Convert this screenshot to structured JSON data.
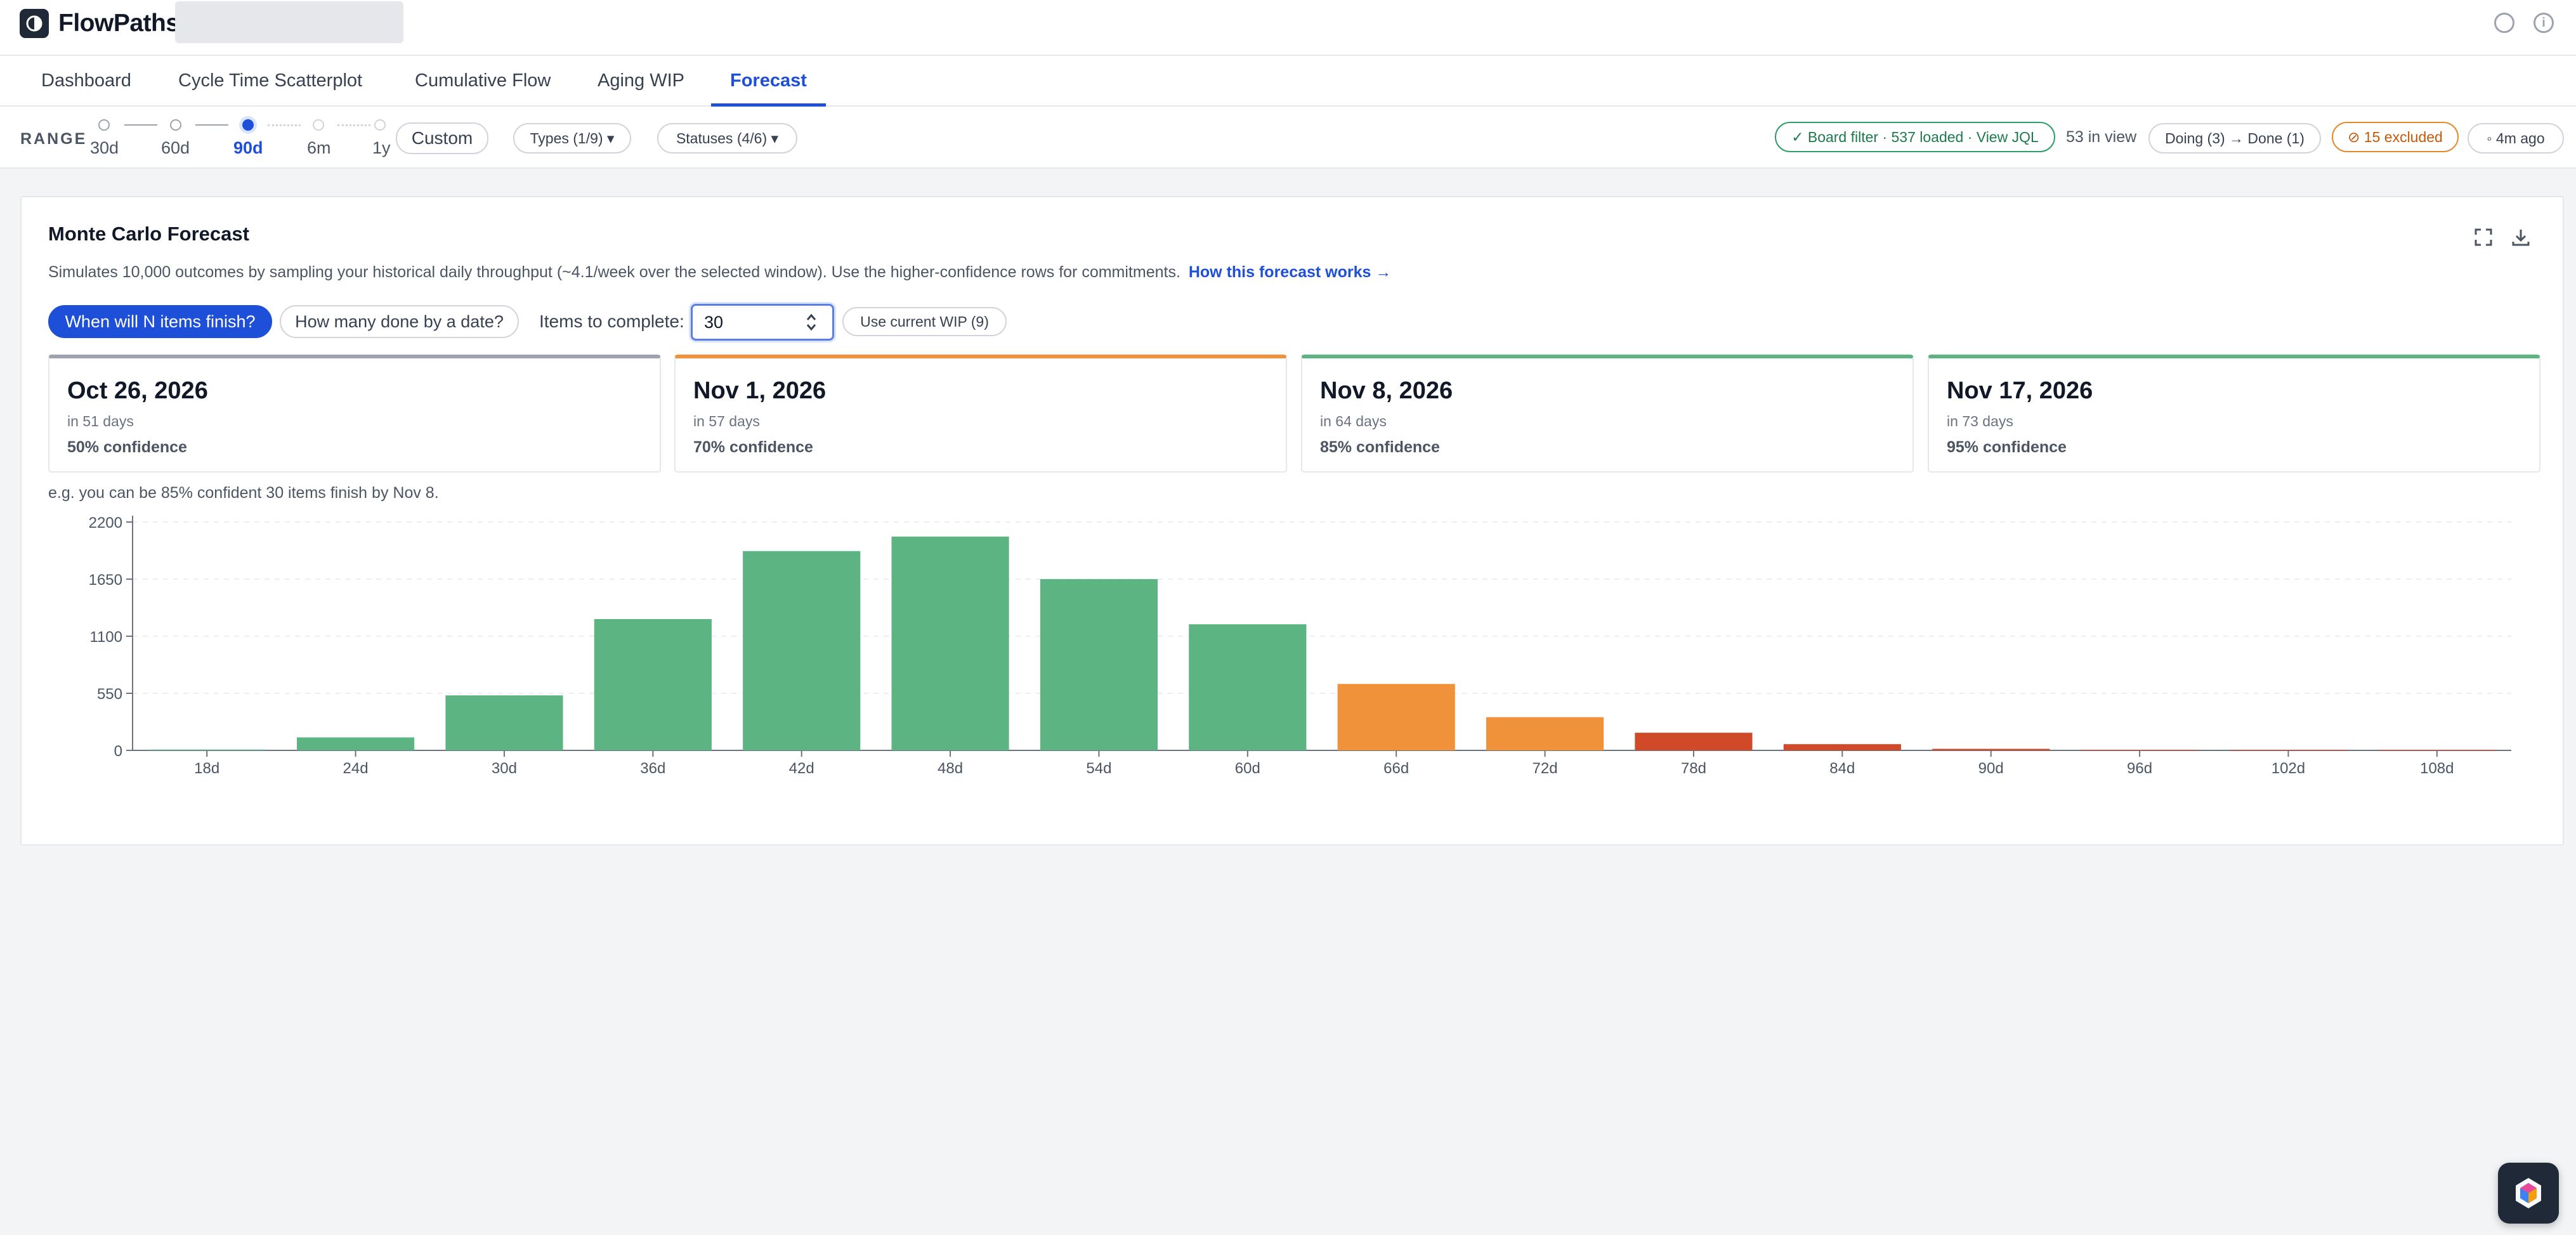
{
  "app": {
    "name": "FlowPaths",
    "logo_icon": "flowpaths-logo-icon",
    "header_icons": [
      "settings-icon",
      "info-icon"
    ]
  },
  "tabs": [
    {
      "label": "Dashboard",
      "active": false
    },
    {
      "label": "Cycle Time Scatterplot",
      "active": false
    },
    {
      "label": "Cumulative Flow",
      "active": false
    },
    {
      "label": "Aging WIP",
      "active": false
    },
    {
      "label": "Forecast",
      "active": true
    }
  ],
  "range": {
    "label": "RANGE",
    "options": [
      "30d",
      "60d",
      "90d",
      "6m",
      "1y"
    ],
    "selected": "90d",
    "custom_label": "Custom"
  },
  "filters": {
    "types": "Types (1/9) ▾",
    "statuses": "Statuses (4/6) ▾",
    "board_filter": "✓ Board filter · 537 loaded · View JQL",
    "in_view": "53 in view",
    "flow": "Doing (3) → Done (1)",
    "excluded": "⊘ 15 excluded",
    "refreshed": "◦ 4m ago"
  },
  "forecast": {
    "title": "Monte Carlo Forecast",
    "description": "Simulates 10,000 outcomes by sampling your historical daily throughput (~4.1/week over the selected window). Use the higher-confidence rows for commitments.",
    "help_link": "How this forecast works →",
    "mode_when": "When will N items finish?",
    "mode_howmany": "How many done by a date?",
    "items_label": "Items to complete:",
    "items_value": "30",
    "use_wip_label": "Use current WIP (9)",
    "icons": [
      "expand-icon",
      "download-icon"
    ],
    "confidence": [
      {
        "date": "Oct 26, 2026",
        "days": "in 51 days",
        "level": "50% confidence",
        "color": "#9ca3af"
      },
      {
        "date": "Nov 1, 2026",
        "days": "in 57 days",
        "level": "70% confidence",
        "color": "#f0923a"
      },
      {
        "date": "Nov 8, 2026",
        "days": "in 64 days",
        "level": "85% confidence",
        "color": "#5cb482"
      },
      {
        "date": "Nov 17, 2026",
        "days": "in 73 days",
        "level": "95% confidence",
        "color": "#5cb482"
      }
    ],
    "example": "e.g. you can be 85% confident 30 items finish by Nov 8."
  },
  "chart_data": {
    "type": "bar",
    "title": "",
    "xlabel": "",
    "ylabel": "",
    "categories": [
      "18d",
      "24d",
      "30d",
      "36d",
      "42d",
      "48d",
      "54d",
      "60d",
      "66d",
      "72d",
      "78d",
      "84d",
      "90d",
      "96d",
      "102d",
      "108d"
    ],
    "values": [
      8,
      125,
      530,
      1265,
      1920,
      2060,
      1650,
      1215,
      640,
      320,
      170,
      60,
      15,
      5,
      2,
      1
    ],
    "bar_colors": [
      "#5cb482",
      "#5cb482",
      "#5cb482",
      "#5cb482",
      "#5cb482",
      "#5cb482",
      "#5cb482",
      "#5cb482",
      "#f0923a",
      "#f0923a",
      "#d04a2a",
      "#d04a2a",
      "#d04a2a",
      "#d04a2a",
      "#d04a2a",
      "#d04a2a"
    ],
    "yticks": [
      "0",
      "550",
      "1100",
      "1650",
      "2200"
    ],
    "ylim": [
      0,
      2200
    ],
    "grid": true
  }
}
